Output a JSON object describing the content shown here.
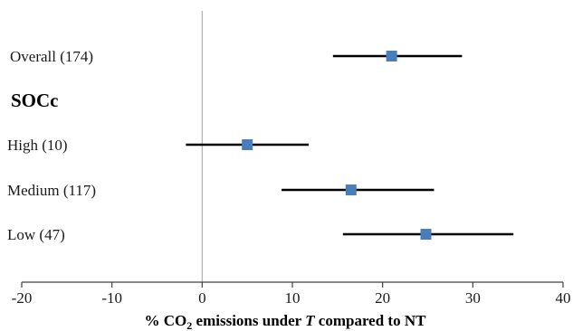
{
  "chart_data": {
    "type": "forest",
    "x_range": [
      -20,
      40
    ],
    "x_ticks": [
      "-20",
      "-10",
      "0",
      "10",
      "20",
      "30",
      "40"
    ],
    "x_tick_values": [
      -20,
      -10,
      0,
      10,
      20,
      30,
      40
    ],
    "xlabel": {
      "prefix": "% CO",
      "subscript": "2",
      "middle": " emissions under ",
      "italic": "T",
      "suffix": " compared to NT"
    },
    "group_header": "SOCc",
    "rows": [
      {
        "label": "Overall",
        "n": "(174)",
        "mean": 21.0,
        "lower": 14.5,
        "upper": 28.8
      },
      {
        "label": "High",
        "n": "(10)",
        "mean": 5.0,
        "lower": -1.8,
        "upper": 11.8
      },
      {
        "label": "Medium",
        "n": "(117)",
        "mean": 16.5,
        "lower": 8.8,
        "upper": 25.7
      },
      {
        "label": "Low",
        "n": "(47)",
        "mean": 24.8,
        "lower": 15.6,
        "upper": 34.5
      }
    ],
    "colors": {
      "marker": "#4a7ebb",
      "line": "#000000",
      "zero_line": "#b0b0b0",
      "axis": "#404040"
    }
  }
}
